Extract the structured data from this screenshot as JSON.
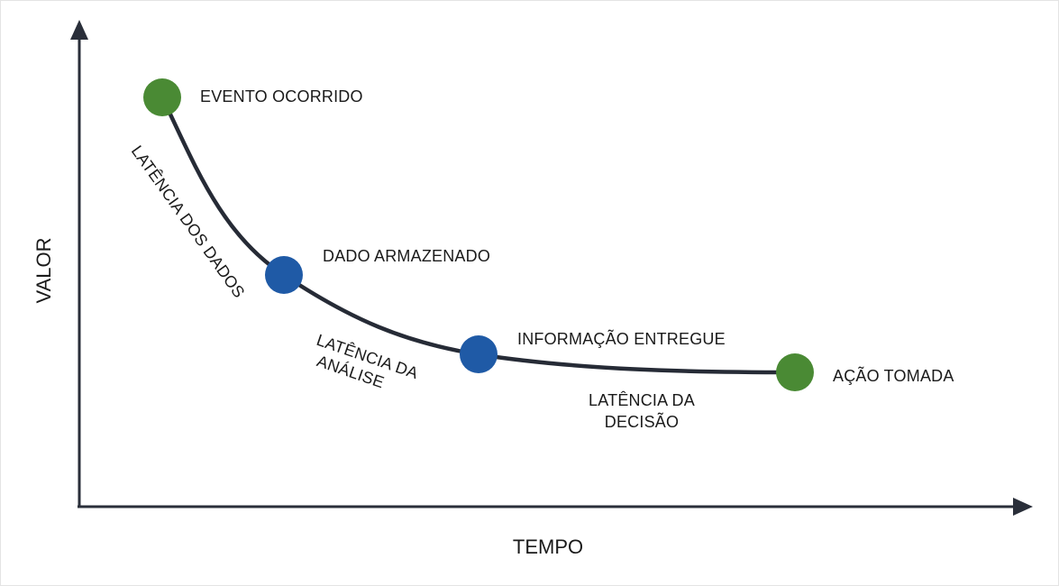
{
  "axes": {
    "x_label": "TEMPO",
    "y_label": "VALOR"
  },
  "nodes": [
    {
      "id": "event",
      "label": "EVENTO OCORRIDO",
      "color": "#4a8a34"
    },
    {
      "id": "stored",
      "label": "DADO ARMAZENADO",
      "color": "#1f5aa6"
    },
    {
      "id": "delivered",
      "label": "INFORMAÇÃO ENTREGUE",
      "color": "#1f5aa6"
    },
    {
      "id": "action",
      "label": "AÇÃO TOMADA",
      "color": "#4a8a34"
    }
  ],
  "latencies": {
    "data": "LATÊNCIA DOS DADOS",
    "analysis_line1": "LATÊNCIA DA",
    "analysis_line2": "ANÁLISE",
    "decision_line1": "LATÊNCIA DA",
    "decision_line2": "DECISÃO"
  },
  "colors": {
    "curve": "#262b36",
    "axis": "#2a2f3a"
  }
}
